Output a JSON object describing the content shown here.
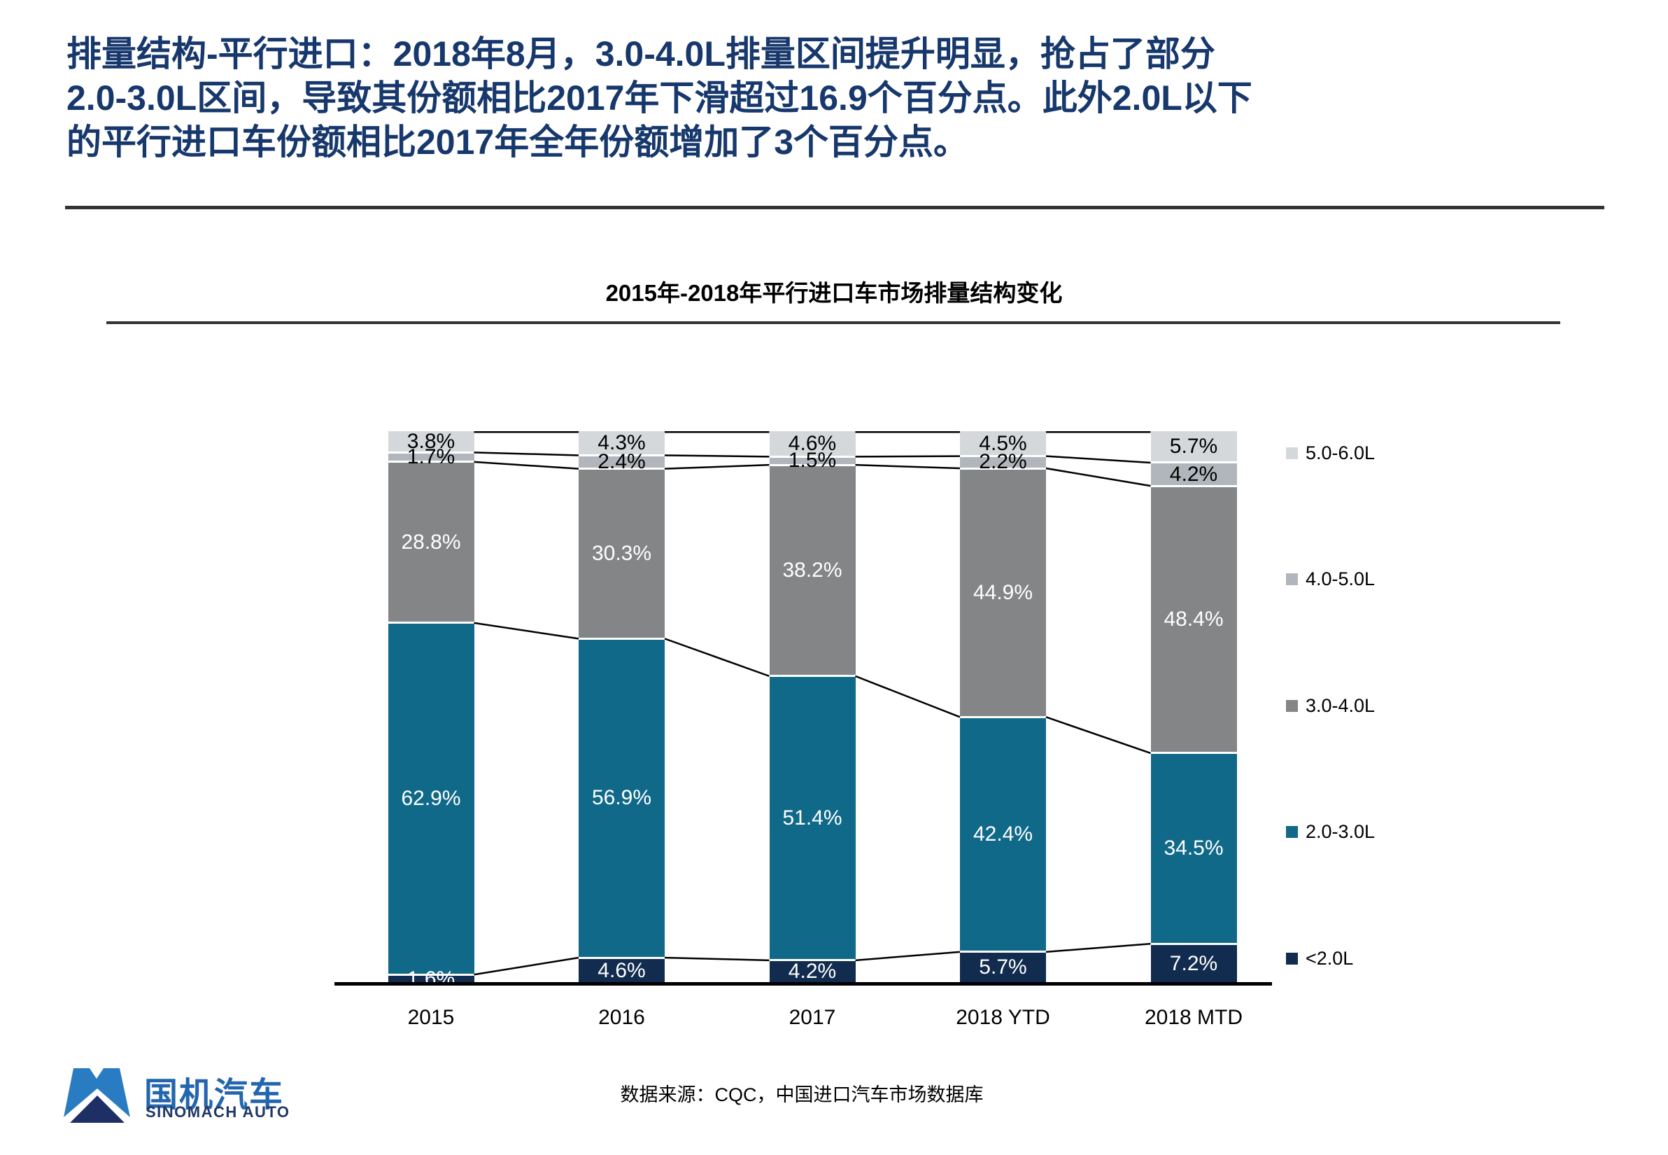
{
  "slide": {
    "title_lines": [
      "排量结构-平行进口：2018年8月，3.0-4.0L排量区间提升明显，抢占了部分",
      "2.0-3.0L区间，导致其份额相比2017年下滑超过16.9个百分点。此外2.0L以下",
      "的平行进口车份额相比2017年全年份额增加了3个百分点。"
    ]
  },
  "colors": {
    "title": "#17386C",
    "rule": "#333333",
    "axis": "#000000"
  },
  "chart_data": {
    "type": "bar",
    "stacked": true,
    "normalized_100": true,
    "title": "2015年-2018年平行进口车市场排量结构变化",
    "source": "数据来源：CQC，中国进口汽车市场数据库",
    "categories": [
      "2015",
      "2016",
      "2017",
      "2018 YTD",
      "2018 MTD"
    ],
    "series": [
      {
        "name": "<2.0L",
        "color": "#112C4E",
        "label_color": "#ffffff",
        "values": [
          1.6,
          4.6,
          4.2,
          5.7,
          7.2
        ]
      },
      {
        "name": "2.0-3.0L",
        "color": "#11698A",
        "label_color": "#ffffff",
        "values": [
          62.9,
          56.9,
          51.4,
          42.4,
          34.5
        ]
      },
      {
        "name": "3.0-4.0L",
        "color": "#838587",
        "label_color": "#ffffff",
        "values": [
          28.8,
          30.3,
          38.2,
          44.9,
          48.4
        ]
      },
      {
        "name": "4.0-5.0L",
        "color": "#B0B6BB",
        "label_color": "#000000",
        "values": [
          1.7,
          2.4,
          1.5,
          2.2,
          4.2
        ]
      },
      {
        "name": "5.0-6.0L",
        "color": "#D5D8DB",
        "label_color": "#000000",
        "values": [
          3.8,
          4.3,
          4.6,
          4.5,
          5.7
        ]
      }
    ],
    "value_suffix": "%",
    "ylim": [
      0,
      100
    ],
    "legend_position": "right",
    "legend_order_top_to_bottom": [
      "5.0-6.0L",
      "4.0-5.0L",
      "3.0-4.0L",
      "2.0-3.0L",
      "<2.0L"
    ],
    "connector_lines": true,
    "grid": false
  },
  "logo": {
    "name": "国机汽车",
    "subtitle": "SINOMACH AUTO",
    "colors": {
      "mark_blue": "#2A7CC2",
      "mark_navy": "#1E2F66",
      "text": "#2365AE",
      "subtitle": "#1F3864"
    }
  }
}
